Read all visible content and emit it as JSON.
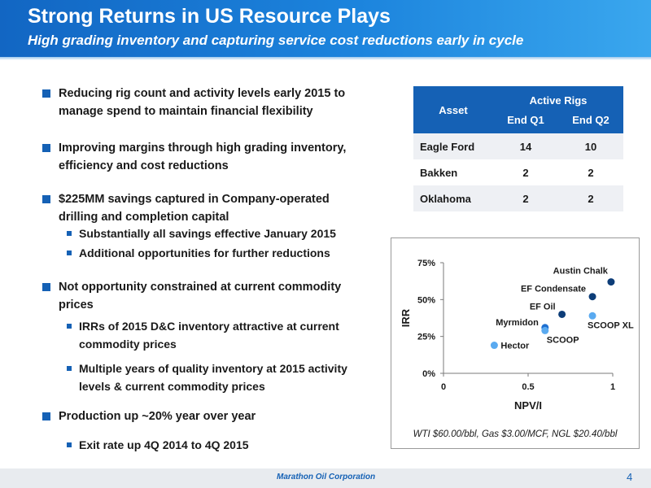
{
  "header": {
    "title": "Strong Returns in US Resource Plays",
    "subtitle": "High grading inventory and capturing service cost reductions early in cycle"
  },
  "bullets": [
    {
      "level": 1,
      "lines": [
        "Reducing rig count and activity levels early 2015 to",
        "manage spend to maintain financial flexibility"
      ]
    },
    {
      "level": 1,
      "lines": [
        "Improving margins through high grading inventory,",
        "efficiency and cost reductions"
      ]
    },
    {
      "level": 1,
      "lines": [
        "$225MM savings captured in Company-operated",
        "drilling and completion capital"
      ]
    },
    {
      "level": 2,
      "lines": [
        "Substantially all savings effective January 2015"
      ]
    },
    {
      "level": 2,
      "lines": [
        "Additional opportunities for further reductions"
      ]
    },
    {
      "level": 1,
      "lines": [
        "Not opportunity constrained at current commodity",
        "prices"
      ]
    },
    {
      "level": 2,
      "lines": [
        "IRRs of 2015 D&C inventory attractive at current",
        "commodity prices"
      ]
    },
    {
      "level": 2,
      "lines": [
        "Multiple years of quality inventory at 2015 activity",
        "levels & current commodity prices"
      ]
    },
    {
      "level": 1,
      "lines": [
        "Production up ~20% year over year"
      ]
    },
    {
      "level": 2,
      "lines": [
        "Exit rate up 4Q 2014 to 4Q 2015"
      ]
    }
  ],
  "rig_table": {
    "asset_header": "Asset",
    "group_header": "Active Rigs",
    "col_q1": "End Q1",
    "col_q2": "End Q2",
    "rows": [
      {
        "asset": "Eagle Ford",
        "q1": "14",
        "q2": "10"
      },
      {
        "asset": "Bakken",
        "q1": "2",
        "q2": "2"
      },
      {
        "asset": "Oklahoma",
        "q1": "2",
        "q2": "2"
      }
    ]
  },
  "chart_data": {
    "type": "scatter",
    "xlabel": "NPV/I",
    "ylabel": "IRR",
    "xlim": [
      0,
      1
    ],
    "ylim": [
      0,
      75
    ],
    "xticks": [
      "0",
      "0.5",
      "1"
    ],
    "yticks": [
      "0%",
      "25%",
      "50%",
      "75%"
    ],
    "points": [
      {
        "label": "Austin Chalk",
        "x": 0.99,
        "y": 62,
        "color": "#0d3d78"
      },
      {
        "label": "EF Condensate",
        "x": 0.88,
        "y": 52,
        "color": "#0d3d78"
      },
      {
        "label": "EF Oil",
        "x": 0.7,
        "y": 40,
        "color": "#0d3d78"
      },
      {
        "label": "SCOOP XL",
        "x": 0.88,
        "y": 39,
        "color": "#5aaaf0"
      },
      {
        "label": "Myrmidon",
        "x": 0.6,
        "y": 31,
        "color": "#1e6fd0"
      },
      {
        "label": "SCOOP",
        "x": 0.6,
        "y": 29,
        "color": "#5aaaf0"
      },
      {
        "label": "Hector",
        "x": 0.3,
        "y": 19,
        "color": "#5aaaf0"
      }
    ],
    "footnote": "WTI $60.00/bbl, Gas $3.00/MCF, NGL $20.40/bbl"
  },
  "footer": {
    "brand": "Marathon Oil Corporation",
    "page_number": "4"
  }
}
